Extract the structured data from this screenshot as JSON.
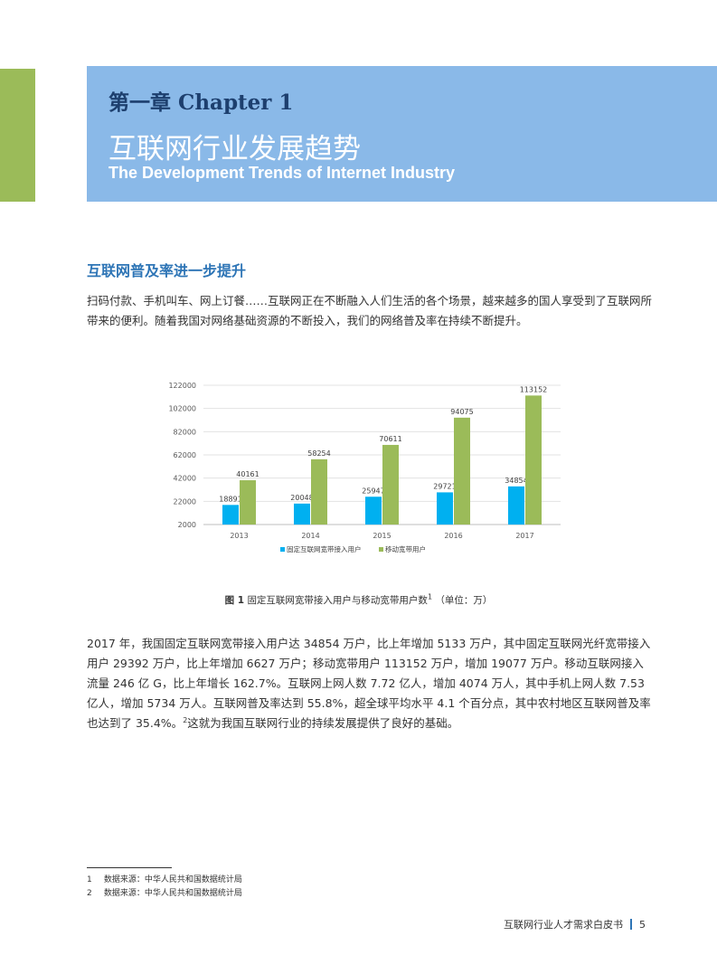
{
  "header": {
    "chapter": "第一章 Chapter 1",
    "title_cn": "互联网行业发展趋势",
    "title_en": "The Development Trends of Internet Industry"
  },
  "section": {
    "heading": "互联网普及率进一步提升",
    "intro": "扫码付款、手机叫车、网上订餐……互联网正在不断融入人们生活的各个场景，越来越多的国人享受到了互联网所带来的便利。随着我国对网络基础资源的不断投入，我们的网络普及率在持续不断提升。"
  },
  "chart_data": {
    "type": "bar",
    "categories": [
      "2013",
      "2014",
      "2015",
      "2016",
      "2017"
    ],
    "series": [
      {
        "name": "固定互联网宽带接入用户",
        "values": [
          18891,
          20048,
          25947,
          29721,
          34854
        ],
        "color": "#00b0f0"
      },
      {
        "name": "移动宽带用户",
        "values": [
          40161,
          58254,
          70611,
          94075,
          113152
        ],
        "color": "#9bbb59"
      }
    ],
    "ylim": [
      2000,
      122000
    ],
    "yticks": [
      2000,
      22000,
      42000,
      62000,
      82000,
      102000,
      122000
    ],
    "grid": true,
    "legend": "bottom"
  },
  "caption": {
    "label": "图 1",
    "text": "固定互联网宽带接入用户与移动宽带用户数",
    "sup": "1",
    "unit": "（单位：万）"
  },
  "body": {
    "text": "2017 年，我国固定互联网宽带接入用户达 34854 万户，比上年增加 5133 万户，其中固定互联网光纤宽带接入用户 29392 万户，比上年增加 6627 万户；移动宽带用户 113152 万户，增加 19077 万户。移动互联网接入流量 246 亿 G，比上年增长 162.7%。互联网上网人数 7.72 亿人，增加 4074 万人，其中手机上网人数 7.53 亿人，增加 5734 万人。互联网普及率达到 55.8%，超全球平均水平 4.1 个百分点，其中农村地区互联网普及率也达到了 35.4%。",
    "sup": "2",
    "tail": "这就为我国互联网行业的持续发展提供了良好的基础。"
  },
  "footnotes": [
    {
      "num": "1",
      "text": "数据来源：中华人民共和国数据统计局"
    },
    {
      "num": "2",
      "text": "数据来源：中华人民共和国数据统计局"
    }
  ],
  "footer": {
    "book": "互联网行业人才需求白皮书",
    "page": "5"
  }
}
